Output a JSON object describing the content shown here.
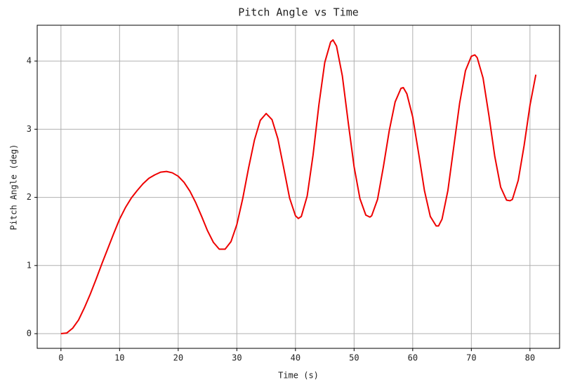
{
  "chart_data": {
    "type": "line",
    "title": "Pitch Angle vs Time",
    "xlabel": "Time (s)",
    "ylabel": "Pitch Angle (deg)",
    "x": [
      0,
      1,
      2,
      3,
      4,
      5,
      6,
      7,
      8,
      9,
      10,
      11,
      12,
      13,
      14,
      15,
      16,
      17,
      18,
      19,
      20,
      21,
      22,
      23,
      24,
      25,
      26,
      27,
      28,
      29,
      30,
      31,
      32,
      33,
      34,
      35,
      36,
      37,
      38,
      39,
      40,
      40.5,
      41,
      42,
      43,
      44,
      45,
      46,
      46.4,
      47,
      48,
      49,
      50,
      51,
      52,
      52.7,
      53,
      54,
      55,
      56,
      57,
      58,
      58.4,
      59,
      60,
      61,
      62,
      63,
      64,
      64.4,
      65,
      66,
      67,
      68,
      69,
      70,
      70.6,
      71,
      72,
      73,
      74,
      75,
      76,
      76.6,
      77,
      78,
      79,
      80,
      81
    ],
    "series": [
      {
        "name": "Pitch Angle",
        "color": "#ee0000",
        "values": [
          0,
          0.01,
          0.08,
          0.2,
          0.38,
          0.58,
          0.8,
          1.03,
          1.25,
          1.47,
          1.68,
          1.85,
          1.99,
          2.1,
          2.2,
          2.28,
          2.33,
          2.37,
          2.38,
          2.36,
          2.31,
          2.22,
          2.09,
          1.92,
          1.72,
          1.51,
          1.34,
          1.24,
          1.24,
          1.35,
          1.6,
          1.98,
          2.43,
          2.84,
          3.13,
          3.23,
          3.14,
          2.86,
          2.43,
          1.99,
          1.73,
          1.69,
          1.72,
          2.02,
          2.62,
          3.36,
          3.98,
          4.28,
          4.31,
          4.22,
          3.78,
          3.1,
          2.45,
          1.98,
          1.74,
          1.71,
          1.73,
          1.97,
          2.45,
          2.98,
          3.4,
          3.6,
          3.61,
          3.52,
          3.18,
          2.65,
          2.1,
          1.72,
          1.58,
          1.58,
          1.68,
          2.1,
          2.74,
          3.38,
          3.86,
          4.07,
          4.09,
          4.05,
          3.75,
          3.2,
          2.6,
          2.15,
          1.96,
          1.95,
          1.97,
          2.25,
          2.76,
          3.35,
          3.8
        ]
      }
    ],
    "xlim": [
      -4.05,
      85.05
    ],
    "xticks": [
      0,
      10,
      20,
      30,
      40,
      50,
      60,
      70,
      80
    ],
    "ylim": [
      -0.2155,
      4.5255
    ],
    "yticks": [
      0,
      1,
      2,
      3,
      4
    ],
    "grid": true
  }
}
